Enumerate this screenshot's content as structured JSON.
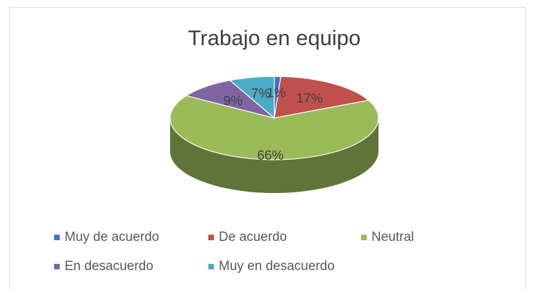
{
  "chart_data": {
    "type": "pie3d",
    "title": "Trabajo en equipo",
    "categories": [
      "Muy de acuerdo",
      "De acuerdo",
      "Neutral",
      "En desacuerdo",
      "Muy en desacuerdo"
    ],
    "values": [
      1,
      17,
      66,
      9,
      7
    ],
    "value_labels": [
      "1%",
      "17%",
      "66%",
      "9%",
      "7%"
    ],
    "colors": [
      "#4472c4",
      "#c0504d",
      "#9bbb59",
      "#8064a2",
      "#4bacc6"
    ],
    "legend": "bottom"
  }
}
